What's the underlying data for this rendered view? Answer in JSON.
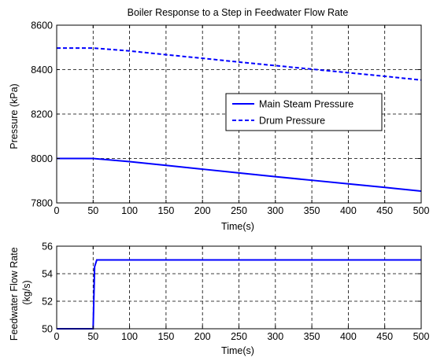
{
  "chart_data": [
    {
      "type": "line",
      "title": "Boiler Response to a Step in Feedwater Flow Rate",
      "xlabel": "Time(s)",
      "ylabel": "Pressure (kPa)",
      "xlim": [
        0,
        500
      ],
      "ylim": [
        7800,
        8600
      ],
      "xticks": [
        "0",
        "50",
        "100",
        "150",
        "200",
        "250",
        "300",
        "350",
        "400",
        "450",
        "500"
      ],
      "yticks": [
        "7800",
        "8000",
        "8200",
        "8400",
        "8600"
      ],
      "grid": true,
      "legend_position": "center-right",
      "series": [
        {
          "name": "Main Steam Pressure",
          "style": "solid",
          "color": "#0000ff",
          "x": [
            0,
            50,
            100,
            150,
            200,
            250,
            300,
            350,
            400,
            450,
            500
          ],
          "y": [
            8000,
            8000,
            7986,
            7969,
            7952,
            7935,
            7918,
            7902,
            7886,
            7870,
            7853
          ]
        },
        {
          "name": "Drum Pressure",
          "style": "dashed",
          "color": "#0000ff",
          "x": [
            0,
            50,
            100,
            150,
            200,
            250,
            300,
            350,
            400,
            450,
            500
          ],
          "y": [
            8497,
            8497,
            8484,
            8467,
            8451,
            8434,
            8418,
            8402,
            8386,
            8370,
            8353
          ]
        }
      ]
    },
    {
      "type": "line",
      "title": "",
      "xlabel": "Time(s)",
      "ylabel_lines": [
        "Feedwater Flow Rate",
        "(kg/s)"
      ],
      "xlim": [
        0,
        500
      ],
      "ylim": [
        50,
        56
      ],
      "xticks": [
        "0",
        "50",
        "100",
        "150",
        "200",
        "250",
        "300",
        "350",
        "400",
        "450",
        "500"
      ],
      "yticks": [
        "50",
        "52",
        "54",
        "56"
      ],
      "grid": true,
      "series": [
        {
          "style": "solid",
          "color": "#0000ff",
          "x": [
            0,
            50,
            52,
            55,
            500
          ],
          "y": [
            50,
            50,
            54.5,
            55,
            55
          ]
        }
      ]
    }
  ]
}
